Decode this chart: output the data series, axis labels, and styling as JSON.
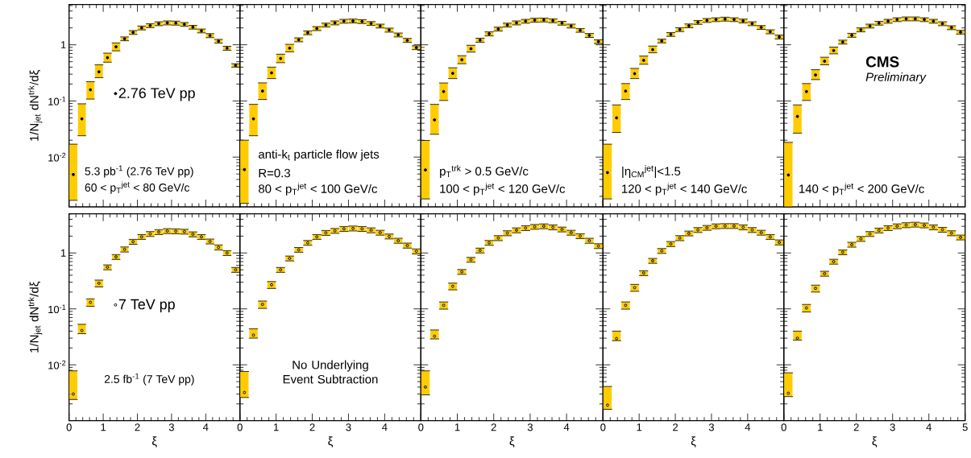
{
  "chart_data": [
    {
      "type": "scatter",
      "ylabel": "1/N$_{jet}$ dN$^{trk}$/dξ",
      "log": true,
      "xlim": [
        0,
        5
      ],
      "ylim": [
        0.0013,
        5.2
      ],
      "xticks": [
        0,
        1,
        2,
        3,
        4,
        5
      ],
      "yticks": [
        {
          "value": 0.01,
          "label": "10$^{-2}$"
        },
        {
          "value": 0.1,
          "label": "10$^{-1}$"
        },
        1
      ],
      "tick_labels": "y",
      "marker": "circle",
      "legend": "left",
      "x": [
        0.125,
        0.375,
        0.625,
        0.875,
        1.125,
        1.375,
        1.625,
        1.875,
        2.125,
        2.375,
        2.625,
        2.875,
        3.125,
        3.375,
        3.625,
        3.875,
        4.125,
        4.375,
        4.625,
        4.875
      ],
      "series": [
        {
          "name": "2.76 TeV pp",
          "color": "#000000",
          "values": [
            0.0049,
            0.048,
            0.158,
            0.33,
            0.59,
            0.92,
            1.28,
            1.66,
            2.0,
            2.2,
            2.38,
            2.46,
            2.44,
            2.31,
            2.06,
            1.77,
            1.46,
            1.16,
            0.87,
            0.43
          ],
          "errors": [
            [
              0.0017,
              0.017
            ],
            [
              0.024,
              0.089
            ],
            [
              0.108,
              0.22
            ],
            [
              0.26,
              0.44
            ],
            [
              0.49,
              0.71
            ],
            [
              0.78,
              1.08
            ],
            0.1,
            0.13,
            0.16,
            0.18,
            0.19,
            0.2,
            0.2,
            0.18,
            0.16,
            0.14,
            0.12,
            0.09,
            0.07,
            0.03
          ]
        }
      ],
      "annotations": [
        "5.3 pb$^{-1}$ (2.76 TeV pp)",
        "60 < p$_{T}$$^{jet}$ < 80 GeV/c"
      ]
    },
    {
      "type": "scatter",
      "log": true,
      "xlim": [
        0,
        5
      ],
      "ylim": [
        0.0013,
        5.2
      ],
      "xticks": [
        0,
        1,
        2,
        3,
        4,
        5
      ],
      "yticks": [
        {
          "value": 0.01,
          "label": null
        },
        {
          "value": 0.1,
          "label": null
        },
        {
          "value": 1,
          "label": null
        }
      ],
      "tick_labels": false,
      "marker": "circle",
      "x": [
        0.125,
        0.375,
        0.625,
        0.875,
        1.125,
        1.375,
        1.625,
        1.875,
        2.125,
        2.375,
        2.625,
        2.875,
        3.125,
        3.375,
        3.625,
        3.875,
        4.125,
        4.375,
        4.625,
        4.875
      ],
      "series": [
        {
          "color": "#000000",
          "values": [
            0.006,
            0.048,
            0.15,
            0.316,
            0.57,
            0.87,
            1.23,
            1.64,
            1.95,
            2.25,
            2.46,
            2.63,
            2.66,
            2.6,
            2.4,
            2.16,
            1.83,
            1.5,
            1.2,
            0.89
          ],
          "errors": [
            [
              0.0015,
              0.02
            ],
            [
              0.024,
              0.087
            ],
            [
              0.106,
              0.21
            ],
            [
              0.25,
              0.4
            ],
            [
              0.48,
              0.68
            ],
            [
              0.75,
              1.02
            ],
            0.1,
            0.13,
            0.16,
            0.18,
            0.2,
            0.21,
            0.21,
            0.21,
            0.19,
            0.17,
            0.15,
            0.12,
            0.1,
            0.07
          ]
        }
      ],
      "annotations": [
        "anti-k$_{t}$ particle flow jets",
        "R=0.3",
        "80 < p$_{T}$$^{jet}$ < 100 GeV/c"
      ]
    },
    {
      "type": "scatter",
      "log": true,
      "xlim": [
        0,
        5
      ],
      "ylim": [
        0.0013,
        5.2
      ],
      "xticks": [
        0,
        1,
        2,
        3,
        4,
        5
      ],
      "yticks": [
        {
          "value": 0.01,
          "label": null
        },
        {
          "value": 0.1,
          "label": null
        },
        {
          "value": 1,
          "label": null
        }
      ],
      "tick_labels": false,
      "marker": "circle",
      "x": [
        0.125,
        0.375,
        0.625,
        0.875,
        1.125,
        1.375,
        1.625,
        1.875,
        2.125,
        2.375,
        2.625,
        2.875,
        3.125,
        3.375,
        3.625,
        3.875,
        4.125,
        4.375,
        4.625,
        4.875
      ],
      "series": [
        {
          "color": "#000000",
          "values": [
            0.0059,
            0.046,
            0.147,
            0.31,
            0.54,
            0.85,
            1.21,
            1.57,
            1.91,
            2.25,
            2.46,
            2.63,
            2.75,
            2.77,
            2.68,
            2.43,
            2.16,
            1.81,
            1.47,
            1.14
          ],
          "errors": [
            [
              0.0018,
              0.0198
            ],
            [
              0.0255,
              0.087
            ],
            [
              0.102,
              0.209
            ],
            [
              0.25,
              0.39
            ],
            [
              0.46,
              0.64
            ],
            [
              0.74,
              0.98
            ],
            0.1,
            0.13,
            0.15,
            0.18,
            0.2,
            0.21,
            0.22,
            0.22,
            0.21,
            0.19,
            0.17,
            0.14,
            0.12,
            0.09
          ]
        }
      ],
      "annotations": [
        "p$_{T}$$^{trk}$ > 0.5 GeV/c",
        "100 < p$_{T}$$^{jet}$ < 120 GeV/c"
      ]
    },
    {
      "type": "scatter",
      "log": true,
      "xlim": [
        0,
        5
      ],
      "ylim": [
        0.0013,
        5.2
      ],
      "xticks": [
        0,
        1,
        2,
        3,
        4,
        5
      ],
      "yticks": [
        {
          "value": 0.01,
          "label": null
        },
        {
          "value": 0.1,
          "label": null
        },
        {
          "value": 1,
          "label": null
        }
      ],
      "tick_labels": false,
      "marker": "circle",
      "x": [
        0.125,
        0.375,
        0.625,
        0.875,
        1.125,
        1.375,
        1.625,
        1.875,
        2.125,
        2.375,
        2.625,
        2.875,
        3.125,
        3.375,
        3.625,
        3.875,
        4.125,
        4.375,
        4.625,
        4.875
      ],
      "series": [
        {
          "color": "#000000",
          "values": [
            0.0053,
            0.05,
            0.15,
            0.306,
            0.53,
            0.82,
            1.17,
            1.53,
            1.87,
            2.18,
            2.51,
            2.72,
            2.81,
            2.87,
            2.81,
            2.66,
            2.38,
            2.04,
            1.71,
            1.38
          ],
          "errors": [
            [
              0.0018,
              0.017
            ],
            [
              0.0275,
              0.085
            ],
            [
              0.106,
              0.204
            ],
            [
              0.25,
              0.38
            ],
            [
              0.45,
              0.63
            ],
            [
              0.72,
              0.95
            ],
            0.09,
            0.12,
            0.15,
            0.17,
            0.2,
            0.22,
            0.22,
            0.23,
            0.22,
            0.21,
            0.19,
            0.16,
            0.14,
            0.11
          ]
        }
      ],
      "annotations": [
        "|η$_{CM}$$^{jet}$|<1.5",
        "120 < p$_{T}$$^{jet}$ < 140 GeV/c"
      ]
    },
    {
      "type": "scatter",
      "log": true,
      "xlim": [
        0,
        5
      ],
      "ylim": [
        0.0013,
        5.2
      ],
      "xticks": [
        0,
        1,
        2,
        3,
        4,
        5
      ],
      "yticks": [
        {
          "value": 0.01,
          "label": null
        },
        {
          "value": 0.1,
          "label": null
        },
        {
          "value": 1,
          "label": null
        }
      ],
      "tick_labels": false,
      "marker": "circle",
      "x": [
        0.125,
        0.375,
        0.625,
        0.875,
        1.125,
        1.375,
        1.625,
        1.875,
        2.125,
        2.375,
        2.625,
        2.875,
        3.125,
        3.375,
        3.625,
        3.875,
        4.125,
        4.375,
        4.625,
        4.875
      ],
      "series": [
        {
          "color": "#000000",
          "values": [
            0.0048,
            0.053,
            0.147,
            0.29,
            0.51,
            0.79,
            1.12,
            1.48,
            1.85,
            2.16,
            2.43,
            2.63,
            2.81,
            2.9,
            2.9,
            2.81,
            2.63,
            2.38,
            2.02,
            1.68
          ],
          "errors": [
            [
              0.0013,
              0.0183
            ],
            [
              0.0267,
              0.085
            ],
            [
              0.102,
              0.204
            ],
            [
              0.24,
              0.36
            ],
            [
              0.44,
              0.6
            ],
            [
              0.69,
              0.91
            ],
            0.09,
            0.12,
            0.15,
            0.17,
            0.19,
            0.21,
            0.22,
            0.23,
            0.23,
            0.22,
            0.21,
            0.19,
            0.16,
            0.13
          ]
        }
      ],
      "annotations": [
        "CMS",
        "Preliminary",
        "140 < p$_{T}$$^{jet}$ < 200 GeV/c"
      ]
    },
    {
      "type": "scatter",
      "ylabel": "1/N$_{jet}$ dN$^{trk}$/dξ",
      "xlabel": "ξ",
      "log": true,
      "xlim": [
        0,
        5
      ],
      "ylim": [
        0.001,
        5
      ],
      "xticks": [
        0,
        1,
        2,
        3,
        4
      ],
      "yticks": [
        {
          "value": 0.01,
          "label": "10$^{-2}$"
        },
        {
          "value": 0.1,
          "label": "10$^{-1}$"
        },
        1
      ],
      "marker": "circle",
      "legend": "left",
      "x": [
        0.125,
        0.375,
        0.625,
        0.875,
        1.125,
        1.375,
        1.625,
        1.875,
        2.125,
        2.375,
        2.625,
        2.875,
        3.125,
        3.375,
        3.625,
        3.875,
        4.125,
        4.375,
        4.625,
        4.875
      ],
      "series": [
        {
          "name": "7 TeV pp",
          "color": "#000000",
          "values": [
            0.003,
            0.041,
            0.131,
            0.287,
            0.556,
            0.85,
            1.16,
            1.59,
            1.94,
            2.19,
            2.37,
            2.47,
            2.45,
            2.41,
            2.16,
            1.94,
            1.61,
            1.26,
            1.0,
            0.5
          ],
          "errors": [
            [
              0.0024,
              0.0078
            ],
            [
              0.036,
              0.053
            ],
            0.02,
            0.04,
            0.056,
            0.085,
            0.12,
            0.16,
            0.19,
            0.22,
            0.24,
            0.25,
            0.25,
            0.24,
            0.22,
            0.19,
            0.16,
            0.13,
            0.1,
            0.05
          ]
        }
      ],
      "annotations": [
        "2.5 fb$^{-1}$ (7 TeV pp)"
      ]
    },
    {
      "type": "scatter",
      "xlabel": "ξ",
      "log": true,
      "xlim": [
        0,
        5
      ],
      "ylim": [
        0.001,
        5
      ],
      "xticks": [
        0,
        1,
        2,
        3,
        4
      ],
      "yticks": [
        {
          "value": 0.01,
          "label": null
        },
        {
          "value": 0.1,
          "label": null
        },
        {
          "value": 1,
          "label": null
        }
      ],
      "tick_labels": "x",
      "marker": "circle",
      "x": [
        0.125,
        0.375,
        0.625,
        0.875,
        1.125,
        1.375,
        1.625,
        1.875,
        2.125,
        2.375,
        2.625,
        2.875,
        3.125,
        3.375,
        3.625,
        3.875,
        4.125,
        4.375,
        4.625,
        4.875
      ],
      "series": [
        {
          "color": "#000000",
          "values": [
            0.0032,
            0.034,
            0.12,
            0.27,
            0.5,
            0.8,
            1.14,
            1.52,
            1.94,
            2.29,
            2.49,
            2.7,
            2.75,
            2.7,
            2.55,
            2.31,
            1.98,
            1.66,
            1.36,
            1.07
          ],
          "errors": [
            [
              0.0026,
              0.0076
            ],
            [
              0.03,
              0.044
            ],
            0.018,
            0.038,
            0.05,
            0.08,
            0.11,
            0.15,
            0.19,
            0.23,
            0.25,
            0.27,
            0.28,
            0.27,
            0.26,
            0.23,
            0.2,
            0.17,
            0.14,
            0.11
          ]
        }
      ],
      "annotations": [
        "No Underlying Event Subtraction"
      ]
    },
    {
      "type": "scatter",
      "xlabel": "ξ",
      "log": true,
      "xlim": [
        0,
        5
      ],
      "ylim": [
        0.001,
        5
      ],
      "xticks": [
        0,
        1,
        2,
        3,
        4
      ],
      "yticks": [
        {
          "value": 0.01,
          "label": null
        },
        {
          "value": 0.1,
          "label": null
        },
        {
          "value": 1,
          "label": null
        }
      ],
      "tick_labels": "x",
      "marker": "circle",
      "x": [
        0.125,
        0.375,
        0.625,
        0.875,
        1.125,
        1.375,
        1.625,
        1.875,
        2.125,
        2.375,
        2.625,
        2.875,
        3.125,
        3.375,
        3.625,
        3.875,
        4.125,
        4.375,
        4.625,
        4.875
      ],
      "series": [
        {
          "color": "#000000",
          "values": [
            0.004,
            0.0325,
            0.116,
            0.254,
            0.46,
            0.757,
            1.11,
            1.52,
            1.85,
            2.26,
            2.55,
            2.79,
            2.94,
            3.01,
            2.88,
            2.64,
            2.31,
            2.0,
            1.66,
            1.33
          ],
          "errors": [
            [
              0.0029,
              0.0078
            ],
            [
              0.029,
              0.042
            ],
            0.017,
            0.035,
            0.046,
            0.076,
            0.11,
            0.15,
            0.19,
            0.23,
            0.26,
            0.28,
            0.29,
            0.3,
            0.29,
            0.26,
            0.23,
            0.2,
            0.17,
            0.13
          ]
        }
      ]
    },
    {
      "type": "scatter",
      "xlabel": "ξ",
      "log": true,
      "xlim": [
        0,
        5
      ],
      "ylim": [
        0.001,
        5
      ],
      "xticks": [
        0,
        1,
        2,
        3,
        4
      ],
      "yticks": [
        {
          "value": 0.01,
          "label": null
        },
        {
          "value": 0.1,
          "label": null
        },
        {
          "value": 1,
          "label": null
        }
      ],
      "tick_labels": "x",
      "marker": "circle",
      "x": [
        0.125,
        0.375,
        0.625,
        0.875,
        1.125,
        1.375,
        1.625,
        1.875,
        2.125,
        2.375,
        2.625,
        2.875,
        3.125,
        3.375,
        3.625,
        3.875,
        4.125,
        4.375,
        4.625,
        4.875
      ],
      "series": [
        {
          "color": "#000000",
          "values": [
            0.0019,
            0.0295,
            0.116,
            0.24,
            0.437,
            0.725,
            1.09,
            1.45,
            1.85,
            2.24,
            2.58,
            2.82,
            3.01,
            3.04,
            3.04,
            2.88,
            2.58,
            2.31,
            1.94,
            1.55
          ],
          "errors": [
            [
              0.0016,
              0.0041
            ],
            [
              0.027,
              0.04
            ],
            0.017,
            0.034,
            0.044,
            0.073,
            0.11,
            0.15,
            0.19,
            0.22,
            0.26,
            0.28,
            0.3,
            0.3,
            0.3,
            0.29,
            0.26,
            0.23,
            0.19,
            0.16
          ]
        }
      ]
    },
    {
      "type": "scatter",
      "xlabel": "ξ",
      "log": true,
      "xlim": [
        0,
        5
      ],
      "ylim": [
        0.001,
        5
      ],
      "xticks": [
        0,
        1,
        2,
        3,
        4,
        5
      ],
      "yticks": [
        {
          "value": 0.01,
          "label": null
        },
        {
          "value": 0.1,
          "label": null
        },
        {
          "value": 1,
          "label": null
        }
      ],
      "tick_labels": "x",
      "marker": "circle",
      "x": [
        0.125,
        0.375,
        0.625,
        0.875,
        1.125,
        1.375,
        1.625,
        1.875,
        2.125,
        2.375,
        2.625,
        2.875,
        3.125,
        3.375,
        3.625,
        3.875,
        4.125,
        4.375,
        4.625,
        4.875
      ],
      "series": [
        {
          "color": "#000000",
          "values": [
            0.0031,
            0.03,
            0.104,
            0.233,
            0.427,
            0.7,
            1.03,
            1.41,
            1.79,
            2.19,
            2.53,
            2.79,
            3.01,
            3.15,
            3.22,
            3.12,
            2.88,
            2.61,
            2.26,
            1.9
          ],
          "errors": [
            [
              0.0027,
              0.0072
            ],
            [
              0.0276,
              0.04
            ],
            0.016,
            0.033,
            0.043,
            0.07,
            0.1,
            0.14,
            0.18,
            0.22,
            0.25,
            0.28,
            0.3,
            0.32,
            0.32,
            0.31,
            0.29,
            0.26,
            0.23,
            0.19
          ]
        }
      ]
    }
  ]
}
